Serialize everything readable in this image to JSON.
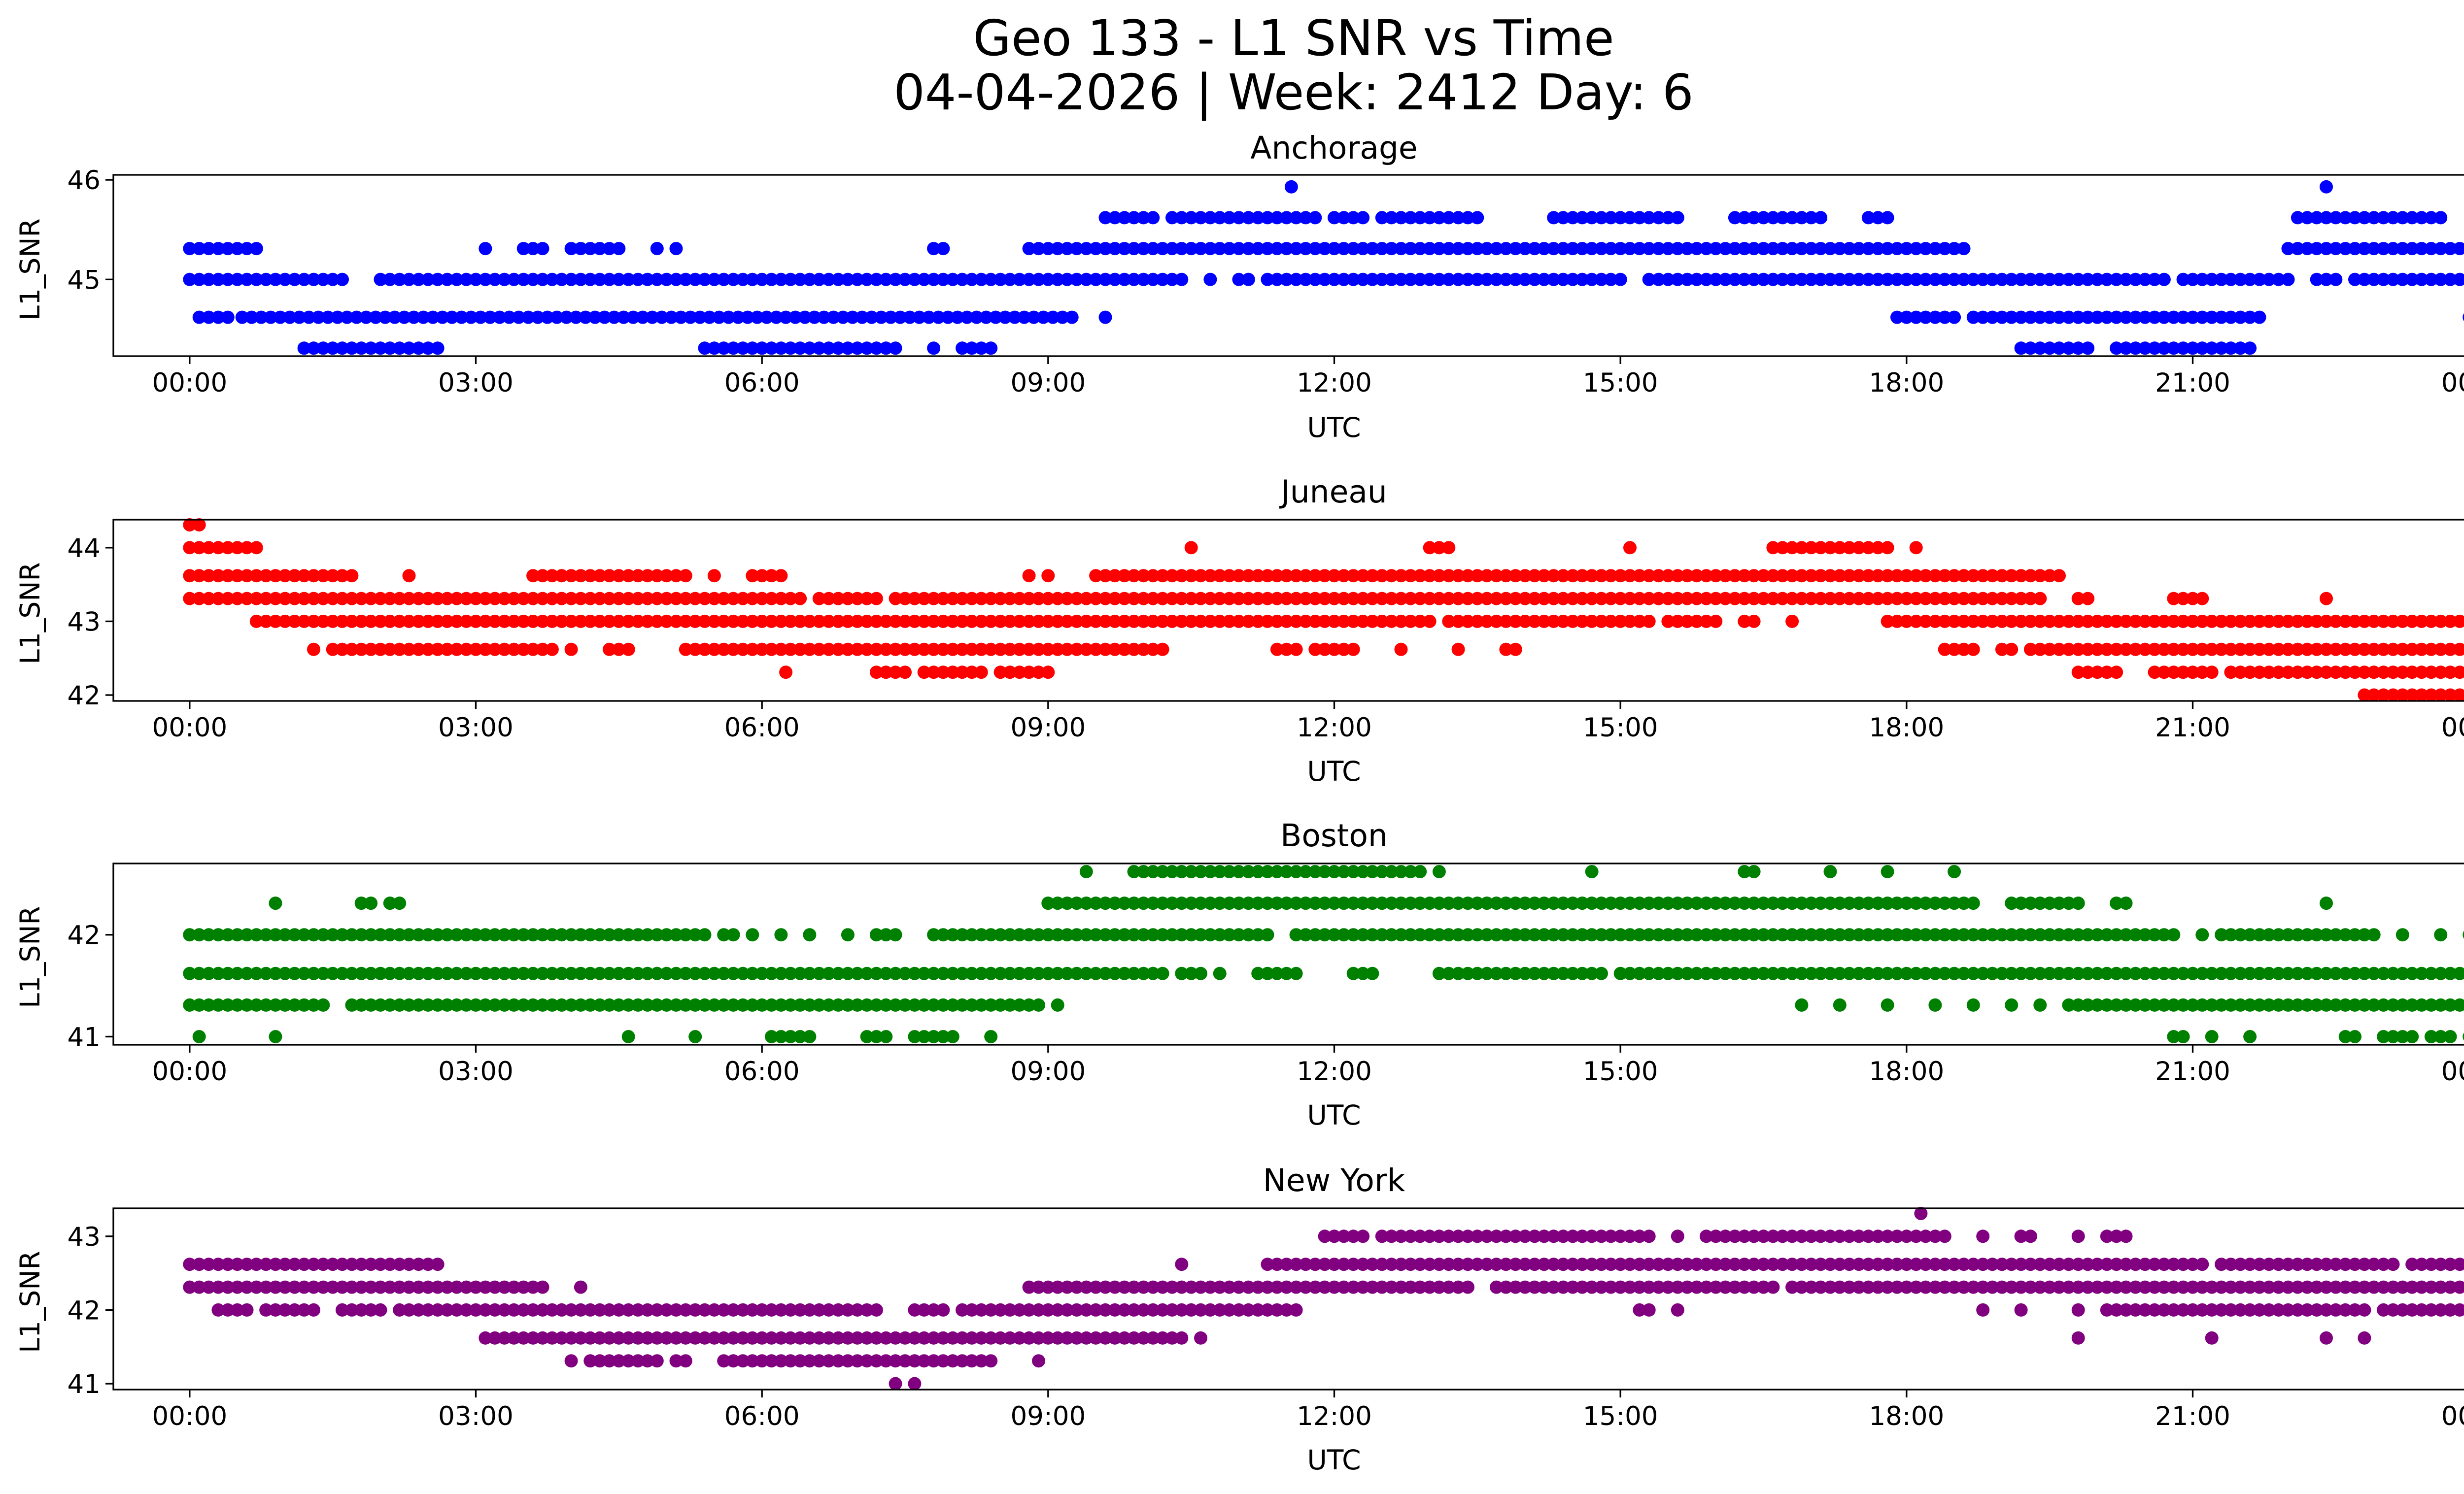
{
  "figure": {
    "title_line1": "Geo 133 - L1 SNR vs Time",
    "title_line2": "04-04-2026 | Week: 2412 Day: 6"
  },
  "chart_data": [
    {
      "type": "scatter",
      "title": "Anchorage",
      "xlabel": "UTC",
      "ylabel": "L1_SNR",
      "color": "#0000ff",
      "xlim": [
        -0.8,
        24.8
      ],
      "ylim": [
        44.23,
        46.05
      ],
      "xticks": [
        "00:00",
        "03:00",
        "06:00",
        "09:00",
        "12:00",
        "15:00",
        "18:00",
        "21:00",
        "00:00"
      ],
      "yticks": [
        45,
        46
      ],
      "ytick_labels": [
        "45",
        "46"
      ],
      "levels": [
        {
          "y": 44.31,
          "ranges": [
            [
              1.2,
              2.6
            ],
            [
              5.4,
              5.9
            ],
            [
              6.0,
              7.4
            ],
            [
              7.8,
              7.8
            ],
            [
              8.1,
              8.4
            ],
            [
              19.2,
              19.9
            ],
            [
              20.2,
              21.6
            ]
          ]
        },
        {
          "y": 44.62,
          "ranges": [
            [
              0.1,
              0.45
            ],
            [
              0.55,
              9.3
            ],
            [
              9.6,
              9.6
            ],
            [
              17.9,
              18.5
            ],
            [
              18.7,
              21.7
            ]
          ]
        },
        {
          "y": 45.0,
          "ranges": [
            [
              0.0,
              1.6
            ],
            [
              2.0,
              10.4
            ],
            [
              10.7,
              10.7
            ],
            [
              11.0,
              11.1
            ],
            [
              11.3,
              15.0
            ],
            [
              15.3,
              20.7
            ],
            [
              20.9,
              22.0
            ],
            [
              22.3,
              22.5
            ],
            [
              22.7,
              24.0
            ]
          ]
        },
        {
          "y": 45.31,
          "ranges": [
            [
              0.0,
              0.7
            ],
            [
              3.1,
              3.1
            ],
            [
              3.5,
              3.7
            ],
            [
              4.0,
              4.4
            ],
            [
              4.5,
              4.5
            ],
            [
              4.9,
              4.9
            ],
            [
              5.1,
              5.1
            ],
            [
              7.8,
              7.9
            ],
            [
              8.8,
              9.0
            ],
            [
              9.1,
              18.6
            ],
            [
              22.0,
              24.0
            ]
          ]
        },
        {
          "y": 45.62,
          "ranges": [
            [
              9.6,
              10.1
            ],
            [
              10.3,
              11.8
            ],
            [
              12.0,
              12.3
            ],
            [
              12.5,
              13.2
            ],
            [
              13.3,
              13.5
            ],
            [
              14.3,
              15.6
            ],
            [
              16.2,
              17.1
            ],
            [
              17.6,
              17.8
            ],
            [
              22.1,
              23.6
            ]
          ]
        },
        {
          "y": 45.93,
          "ranges": [
            [
              11.55,
              11.55
            ],
            [
              22.4,
              22.4
            ]
          ]
        }
      ],
      "extra_points": [
        [
          23.9,
          44.62
        ]
      ]
    },
    {
      "type": "scatter",
      "title": "Juneau",
      "xlabel": "UTC",
      "ylabel": "L1_SNR",
      "color": "#ff0000",
      "xlim": [
        -0.8,
        24.8
      ],
      "ylim": [
        41.92,
        44.38
      ],
      "xticks": [
        "00:00",
        "03:00",
        "06:00",
        "09:00",
        "12:00",
        "15:00",
        "18:00",
        "21:00",
        "00:00"
      ],
      "yticks": [
        42,
        43,
        44
      ],
      "ytick_labels": [
        "42",
        "43",
        "44"
      ],
      "levels": [
        {
          "y": 42.0,
          "ranges": [
            [
              22.8,
              23.2
            ],
            [
              23.3,
              24.0
            ]
          ]
        },
        {
          "y": 42.31,
          "ranges": [
            [
              6.25,
              6.25
            ],
            [
              7.2,
              7.5
            ],
            [
              7.7,
              8.3
            ],
            [
              8.5,
              9.0
            ],
            [
              19.8,
              20.2
            ],
            [
              20.6,
              21.2
            ],
            [
              21.4,
              24.0
            ]
          ]
        },
        {
          "y": 42.62,
          "ranges": [
            [
              1.3,
              1.3
            ],
            [
              1.5,
              3.8
            ],
            [
              4.0,
              4.0
            ],
            [
              4.4,
              4.6
            ],
            [
              5.2,
              10.2
            ],
            [
              11.4,
              11.6
            ],
            [
              11.8,
              12.2
            ],
            [
              12.7,
              12.7
            ],
            [
              13.3,
              13.3
            ],
            [
              13.8,
              13.9
            ],
            [
              18.4,
              18.7
            ],
            [
              19.0,
              19.1
            ],
            [
              19.3,
              24.0
            ]
          ]
        },
        {
          "y": 43.0,
          "ranges": [
            [
              0.7,
              13.0
            ],
            [
              13.2,
              15.3
            ],
            [
              15.5,
              16.0
            ],
            [
              16.3,
              16.4
            ],
            [
              16.8,
              16.8
            ],
            [
              17.8,
              24.0
            ]
          ]
        },
        {
          "y": 43.31,
          "ranges": [
            [
              0.0,
              6.4
            ],
            [
              6.6,
              7.2
            ],
            [
              7.4,
              19.4
            ],
            [
              19.8,
              19.9
            ],
            [
              20.8,
              21.1
            ],
            [
              22.4,
              22.4
            ]
          ]
        },
        {
          "y": 43.62,
          "ranges": [
            [
              0.0,
              1.7
            ],
            [
              2.3,
              2.3
            ],
            [
              3.6,
              5.2
            ],
            [
              5.5,
              5.5
            ],
            [
              5.9,
              6.0
            ],
            [
              6.1,
              6.2
            ],
            [
              8.8,
              8.8
            ],
            [
              9.0,
              9.0
            ],
            [
              9.5,
              19.6
            ]
          ]
        },
        {
          "y": 44.0,
          "ranges": [
            [
              0.0,
              0.7
            ],
            [
              10.5,
              10.5
            ],
            [
              13.0,
              13.2
            ],
            [
              15.1,
              15.1
            ],
            [
              16.6,
              17.5
            ],
            [
              17.6,
              17.8
            ],
            [
              18.1,
              18.1
            ]
          ]
        },
        {
          "y": 44.31,
          "ranges": [
            [
              0.0,
              0.1
            ]
          ]
        }
      ],
      "extra_points": []
    },
    {
      "type": "scatter",
      "title": "Boston",
      "xlabel": "UTC",
      "ylabel": "L1_SNR",
      "color": "#008000",
      "xlim": [
        -0.8,
        24.8
      ],
      "ylim": [
        40.92,
        42.7
      ],
      "xticks": [
        "00:00",
        "03:00",
        "06:00",
        "09:00",
        "12:00",
        "15:00",
        "18:00",
        "21:00",
        "00:00"
      ],
      "yticks": [
        41,
        42
      ],
      "ytick_labels": [
        "41",
        "42"
      ],
      "levels": [
        {
          "y": 41.0,
          "ranges": [
            [
              0.1,
              0.1
            ],
            [
              0.9,
              0.9
            ],
            [
              4.6,
              4.6
            ],
            [
              5.3,
              5.3
            ],
            [
              6.1,
              6.3
            ],
            [
              6.4,
              6.5
            ],
            [
              7.1,
              7.3
            ],
            [
              7.6,
              8.0
            ],
            [
              8.4,
              8.4
            ],
            [
              20.8,
              20.9
            ],
            [
              21.2,
              21.2
            ],
            [
              21.6,
              21.6
            ],
            [
              22.6,
              22.7
            ],
            [
              23.0,
              23.3
            ],
            [
              23.5,
              23.7
            ],
            [
              23.9,
              24.0
            ]
          ]
        },
        {
          "y": 41.31,
          "ranges": [
            [
              0.0,
              1.4
            ],
            [
              1.7,
              2.4
            ],
            [
              2.5,
              3.4
            ],
            [
              3.5,
              8.9
            ],
            [
              9.1,
              9.1
            ],
            [
              16.9,
              16.9
            ],
            [
              17.3,
              17.3
            ],
            [
              17.8,
              17.8
            ],
            [
              18.3,
              18.3
            ],
            [
              18.7,
              18.7
            ],
            [
              19.1,
              19.1
            ],
            [
              19.4,
              19.4
            ],
            [
              19.7,
              19.9
            ],
            [
              20.0,
              24.0
            ]
          ]
        },
        {
          "y": 41.62,
          "ranges": [
            [
              0.0,
              10.2
            ],
            [
              10.4,
              10.6
            ],
            [
              10.8,
              10.8
            ],
            [
              11.2,
              11.6
            ],
            [
              12.2,
              12.4
            ],
            [
              13.1,
              14.8
            ],
            [
              15.0,
              16.7
            ],
            [
              16.8,
              24.0
            ]
          ]
        },
        {
          "y": 42.0,
          "ranges": [
            [
              0.0,
              5.4
            ],
            [
              5.6,
              5.7
            ],
            [
              5.9,
              5.9
            ],
            [
              6.2,
              6.2
            ],
            [
              6.5,
              6.5
            ],
            [
              6.9,
              6.9
            ],
            [
              7.2,
              7.4
            ],
            [
              7.8,
              11.3
            ],
            [
              11.6,
              20.8
            ],
            [
              21.1,
              21.1
            ],
            [
              21.3,
              21.7
            ],
            [
              21.8,
              22.8
            ],
            [
              22.9,
              22.9
            ],
            [
              23.2,
              23.2
            ],
            [
              23.6,
              23.6
            ],
            [
              23.9,
              24.0
            ]
          ]
        },
        {
          "y": 42.31,
          "ranges": [
            [
              0.9,
              0.9
            ],
            [
              1.8,
              1.9
            ],
            [
              2.1,
              2.2
            ],
            [
              9.0,
              18.2
            ],
            [
              18.3,
              18.7
            ],
            [
              19.1,
              19.8
            ],
            [
              20.2,
              20.3
            ],
            [
              22.4,
              22.4
            ]
          ]
        },
        {
          "y": 42.62,
          "ranges": [
            [
              9.4,
              9.4
            ],
            [
              9.9,
              10.3
            ],
            [
              10.4,
              11.0
            ],
            [
              11.1,
              12.9
            ],
            [
              13.1,
              13.1
            ],
            [
              14.7,
              14.7
            ],
            [
              16.3,
              16.4
            ],
            [
              17.2,
              17.2
            ],
            [
              17.8,
              17.8
            ],
            [
              18.5,
              18.5
            ]
          ]
        }
      ],
      "extra_points": []
    },
    {
      "type": "scatter",
      "title": "New York",
      "xlabel": "UTC",
      "ylabel": "L1_SNR",
      "color": "#800080",
      "xlim": [
        -0.8,
        24.8
      ],
      "ylim": [
        40.92,
        43.38
      ],
      "xticks": [
        "00:00",
        "03:00",
        "06:00",
        "09:00",
        "12:00",
        "15:00",
        "18:00",
        "21:00",
        "00:00"
      ],
      "yticks": [
        41,
        42,
        43
      ],
      "ytick_labels": [
        "41",
        "42",
        "43"
      ],
      "levels": [
        {
          "y": 41.0,
          "ranges": [
            [
              7.4,
              7.4
            ],
            [
              7.6,
              7.6
            ]
          ]
        },
        {
          "y": 41.31,
          "ranges": [
            [
              4.0,
              4.0
            ],
            [
              4.2,
              4.4
            ],
            [
              4.5,
              4.9
            ],
            [
              5.1,
              5.2
            ],
            [
              5.6,
              8.4
            ],
            [
              8.9,
              8.9
            ]
          ]
        },
        {
          "y": 41.62,
          "ranges": [
            [
              3.1,
              10.2
            ],
            [
              10.3,
              10.4
            ],
            [
              10.6,
              10.6
            ],
            [
              19.8,
              19.8
            ],
            [
              21.2,
              21.2
            ],
            [
              22.4,
              22.4
            ],
            [
              22.8,
              22.8
            ]
          ]
        },
        {
          "y": 42.0,
          "ranges": [
            [
              0.3,
              0.6
            ],
            [
              0.8,
              1.3
            ],
            [
              1.6,
              1.7
            ],
            [
              1.8,
              2.0
            ],
            [
              2.2,
              7.2
            ],
            [
              7.6,
              7.9
            ],
            [
              8.1,
              11.6
            ],
            [
              15.2,
              15.3
            ],
            [
              15.6,
              15.6
            ],
            [
              18.8,
              18.8
            ],
            [
              19.2,
              19.2
            ],
            [
              19.8,
              19.8
            ],
            [
              20.1,
              22.8
            ],
            [
              23.0,
              23.8
            ]
          ]
        },
        {
          "y": 42.31,
          "ranges": [
            [
              0.0,
              3.7
            ],
            [
              4.1,
              4.1
            ],
            [
              8.8,
              13.4
            ],
            [
              13.7,
              15.6
            ],
            [
              15.7,
              16.6
            ],
            [
              16.8,
              24.0
            ]
          ]
        },
        {
          "y": 42.62,
          "ranges": [
            [
              0.0,
              2.6
            ],
            [
              10.4,
              10.4
            ],
            [
              11.3,
              20.6
            ],
            [
              20.7,
              21.1
            ],
            [
              21.3,
              22.0
            ],
            [
              22.1,
              23.1
            ],
            [
              23.3,
              24.0
            ]
          ]
        },
        {
          "y": 43.0,
          "ranges": [
            [
              11.9,
              12.3
            ],
            [
              12.5,
              15.3
            ],
            [
              15.6,
              15.6
            ],
            [
              15.9,
              16.1
            ],
            [
              16.2,
              18.4
            ],
            [
              18.8,
              18.8
            ],
            [
              19.2,
              19.3
            ],
            [
              19.8,
              19.8
            ],
            [
              20.1,
              20.3
            ]
          ]
        },
        {
          "y": 43.31,
          "ranges": [
            [
              18.15,
              18.15
            ]
          ]
        }
      ],
      "extra_points": []
    }
  ]
}
